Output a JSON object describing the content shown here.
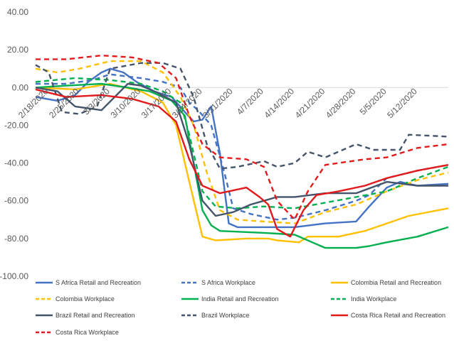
{
  "chart_data": {
    "type": "line",
    "title": "",
    "xlabel": "",
    "ylabel": "",
    "ylim": [
      -100,
      40
    ],
    "yticks": [
      "40.00",
      "20.00",
      "0.00",
      "-20.00",
      "-40.00",
      "-60.00",
      "-80.00",
      "-100.00"
    ],
    "xticks": [
      "2/18/2020",
      "2/25/2020",
      "3/3/2020",
      "3/10/2020",
      "3/17/2020",
      "3/24/2020",
      "3/31/2020",
      "4/7/2020",
      "4/14/2020",
      "4/21/2020",
      "4/28/2020",
      "5/5/2020",
      "5/12/2020"
    ],
    "x_start": "2020-02-15",
    "x_end": "2020-05-19",
    "grid": false,
    "legend_position": "bottom",
    "series": [
      {
        "name": "S Africa Retail and Recreation",
        "color": "#4472C4",
        "dash": "solid",
        "points": [
          [
            "2020-02-15",
            -5
          ],
          [
            "2020-02-20",
            -7
          ],
          [
            "2020-02-24",
            -4
          ],
          [
            "2020-02-27",
            3
          ],
          [
            "2020-03-01",
            8
          ],
          [
            "2020-03-03",
            10
          ],
          [
            "2020-03-06",
            8
          ],
          [
            "2020-03-09",
            3
          ],
          [
            "2020-03-13",
            -2
          ],
          [
            "2020-03-17",
            -5
          ],
          [
            "2020-03-20",
            -13
          ],
          [
            "2020-03-22",
            -18
          ],
          [
            "2020-03-24",
            -17
          ],
          [
            "2020-03-26",
            -10
          ],
          [
            "2020-03-28",
            -35
          ],
          [
            "2020-03-30",
            -72
          ],
          [
            "2020-04-01",
            -74
          ],
          [
            "2020-04-07",
            -74
          ],
          [
            "2020-04-14",
            -74
          ],
          [
            "2020-04-21",
            -72
          ],
          [
            "2020-04-28",
            -71
          ],
          [
            "2020-05-01",
            -63
          ],
          [
            "2020-05-05",
            -53
          ],
          [
            "2020-05-08",
            -50
          ],
          [
            "2020-05-12",
            -52
          ],
          [
            "2020-05-19",
            -51
          ]
        ]
      },
      {
        "name": "S Africa Workplace",
        "color": "#4472C4",
        "dash": "dashed",
        "points": [
          [
            "2020-02-15",
            2
          ],
          [
            "2020-02-22",
            2
          ],
          [
            "2020-02-28",
            4
          ],
          [
            "2020-03-03",
            7
          ],
          [
            "2020-03-10",
            5
          ],
          [
            "2020-03-15",
            3
          ],
          [
            "2020-03-19",
            0
          ],
          [
            "2020-03-21",
            -8
          ],
          [
            "2020-03-23",
            -12
          ],
          [
            "2020-03-26",
            -20
          ],
          [
            "2020-03-29",
            -45
          ],
          [
            "2020-03-31",
            -64
          ],
          [
            "2020-04-04",
            -67
          ],
          [
            "2020-04-10",
            -70
          ],
          [
            "2020-04-14",
            -69
          ],
          [
            "2020-04-21",
            -65
          ],
          [
            "2020-04-28",
            -60
          ],
          [
            "2020-05-01",
            -57
          ],
          [
            "2020-05-05",
            -48
          ],
          [
            "2020-05-12",
            -44
          ],
          [
            "2020-05-19",
            -41
          ]
        ]
      },
      {
        "name": "Colombia Retail and Recreation",
        "color": "#FFC000",
        "dash": "solid",
        "points": [
          [
            "2020-02-15",
            0
          ],
          [
            "2020-02-24",
            -1
          ],
          [
            "2020-03-03",
            2
          ],
          [
            "2020-03-10",
            -2
          ],
          [
            "2020-03-15",
            -8
          ],
          [
            "2020-03-18",
            -20
          ],
          [
            "2020-03-21",
            -50
          ],
          [
            "2020-03-24",
            -79
          ],
          [
            "2020-03-27",
            -81
          ],
          [
            "2020-04-03",
            -80
          ],
          [
            "2020-04-08",
            -80
          ],
          [
            "2020-04-10",
            -81
          ],
          [
            "2020-04-15",
            -82
          ],
          [
            "2020-04-17",
            -79
          ],
          [
            "2020-04-24",
            -79
          ],
          [
            "2020-04-30",
            -76
          ],
          [
            "2020-05-05",
            -72
          ],
          [
            "2020-05-10",
            -68
          ],
          [
            "2020-05-19",
            -64
          ]
        ]
      },
      {
        "name": "Colombia Workplace",
        "color": "#FFC000",
        "dash": "dashed",
        "points": [
          [
            "2020-02-15",
            10
          ],
          [
            "2020-02-20",
            8
          ],
          [
            "2020-02-25",
            10
          ],
          [
            "2020-03-03",
            14
          ],
          [
            "2020-03-10",
            14
          ],
          [
            "2020-03-15",
            8
          ],
          [
            "2020-03-19",
            -5
          ],
          [
            "2020-03-22",
            -20
          ],
          [
            "2020-03-25",
            -45
          ],
          [
            "2020-03-28",
            -65
          ],
          [
            "2020-04-01",
            -70
          ],
          [
            "2020-04-07",
            -71
          ],
          [
            "2020-04-14",
            -72
          ],
          [
            "2020-04-21",
            -66
          ],
          [
            "2020-04-28",
            -62
          ],
          [
            "2020-05-05",
            -55
          ],
          [
            "2020-05-12",
            -49
          ],
          [
            "2020-05-19",
            -45
          ]
        ]
      },
      {
        "name": "India Retail and Recreation",
        "color": "#00B050",
        "dash": "solid",
        "points": [
          [
            "2020-02-15",
            0
          ],
          [
            "2020-02-22",
            1
          ],
          [
            "2020-03-01",
            2
          ],
          [
            "2020-03-07",
            0
          ],
          [
            "2020-03-12",
            -2
          ],
          [
            "2020-03-17",
            -7
          ],
          [
            "2020-03-20",
            -15
          ],
          [
            "2020-03-22",
            -40
          ],
          [
            "2020-03-24",
            -65
          ],
          [
            "2020-03-26",
            -73
          ],
          [
            "2020-03-28",
            -76
          ],
          [
            "2020-04-07",
            -77
          ],
          [
            "2020-04-14",
            -78
          ],
          [
            "2020-04-18",
            -82
          ],
          [
            "2020-04-21",
            -85
          ],
          [
            "2020-04-28",
            -85
          ],
          [
            "2020-05-01",
            -84
          ],
          [
            "2020-05-05",
            -82
          ],
          [
            "2020-05-12",
            -79
          ],
          [
            "2020-05-19",
            -74
          ]
        ]
      },
      {
        "name": "India Workplace",
        "color": "#00B050",
        "dash": "dashed",
        "points": [
          [
            "2020-02-15",
            3
          ],
          [
            "2020-02-24",
            5
          ],
          [
            "2020-03-03",
            4
          ],
          [
            "2020-03-10",
            2
          ],
          [
            "2020-03-15",
            -2
          ],
          [
            "2020-03-19",
            -8
          ],
          [
            "2020-03-21",
            -25
          ],
          [
            "2020-03-24",
            -55
          ],
          [
            "2020-03-27",
            -63
          ],
          [
            "2020-04-01",
            -64
          ],
          [
            "2020-04-07",
            -63
          ],
          [
            "2020-04-14",
            -64
          ],
          [
            "2020-04-21",
            -61
          ],
          [
            "2020-04-28",
            -58
          ],
          [
            "2020-05-05",
            -55
          ],
          [
            "2020-05-12",
            -48
          ],
          [
            "2020-05-19",
            -42
          ]
        ]
      },
      {
        "name": "Brazil Retail and Recreation",
        "color": "#44546A",
        "dash": "solid",
        "points": [
          [
            "2020-02-15",
            0
          ],
          [
            "2020-02-20",
            -2
          ],
          [
            "2020-02-24",
            -10
          ],
          [
            "2020-02-27",
            -11
          ],
          [
            "2020-03-01",
            -12
          ],
          [
            "2020-03-04",
            -5
          ],
          [
            "2020-03-07",
            2
          ],
          [
            "2020-03-10",
            1
          ],
          [
            "2020-03-14",
            -3
          ],
          [
            "2020-03-18",
            -8
          ],
          [
            "2020-03-21",
            -30
          ],
          [
            "2020-03-24",
            -60
          ],
          [
            "2020-03-27",
            -68
          ],
          [
            "2020-03-31",
            -66
          ],
          [
            "2020-04-04",
            -62
          ],
          [
            "2020-04-07",
            -60
          ],
          [
            "2020-04-10",
            -58
          ],
          [
            "2020-04-14",
            -58
          ],
          [
            "2020-04-21",
            -56
          ],
          [
            "2020-04-28",
            -56
          ],
          [
            "2020-05-05",
            -50
          ],
          [
            "2020-05-12",
            -52
          ],
          [
            "2020-05-19",
            -52
          ]
        ]
      },
      {
        "name": "Brazil Workplace",
        "color": "#44546A",
        "dash": "dashed",
        "points": [
          [
            "2020-02-15",
            12
          ],
          [
            "2020-02-18",
            8
          ],
          [
            "2020-02-21",
            -13
          ],
          [
            "2020-02-25",
            -14
          ],
          [
            "2020-02-29",
            -10
          ],
          [
            "2020-03-03",
            10
          ],
          [
            "2020-03-10",
            13
          ],
          [
            "2020-03-15",
            13
          ],
          [
            "2020-03-19",
            10
          ],
          [
            "2020-03-22",
            -5
          ],
          [
            "2020-03-25",
            -30
          ],
          [
            "2020-03-28",
            -43
          ],
          [
            "2020-04-01",
            -42
          ],
          [
            "2020-04-07",
            -39
          ],
          [
            "2020-04-10",
            -42
          ],
          [
            "2020-04-14",
            -40
          ],
          [
            "2020-04-17",
            -34
          ],
          [
            "2020-04-21",
            -37
          ],
          [
            "2020-04-28",
            -30
          ],
          [
            "2020-05-02",
            -33
          ],
          [
            "2020-05-08",
            -33
          ],
          [
            "2020-05-10",
            -25
          ],
          [
            "2020-05-19",
            -26
          ]
        ]
      },
      {
        "name": "Costa Rica Retail and Recreation",
        "color": "#E31A1C",
        "dash": "solid",
        "points": [
          [
            "2020-02-15",
            -1
          ],
          [
            "2020-02-22",
            -5
          ],
          [
            "2020-03-01",
            -4
          ],
          [
            "2020-03-08",
            -6
          ],
          [
            "2020-03-14",
            -10
          ],
          [
            "2020-03-18",
            -18
          ],
          [
            "2020-03-21",
            -38
          ],
          [
            "2020-03-24",
            -52
          ],
          [
            "2020-03-28",
            -56
          ],
          [
            "2020-04-01",
            -54
          ],
          [
            "2020-04-03",
            -53
          ],
          [
            "2020-04-06",
            -58
          ],
          [
            "2020-04-08",
            -62
          ],
          [
            "2020-04-10",
            -75
          ],
          [
            "2020-04-13",
            -79
          ],
          [
            "2020-04-16",
            -65
          ],
          [
            "2020-04-19",
            -57
          ],
          [
            "2020-04-24",
            -55
          ],
          [
            "2020-04-30",
            -52
          ],
          [
            "2020-05-05",
            -48
          ],
          [
            "2020-05-12",
            -44
          ],
          [
            "2020-05-19",
            -41
          ]
        ]
      },
      {
        "name": "Costa Rica Workplace",
        "color": "#E31A1C",
        "dash": "dashed",
        "points": [
          [
            "2020-02-15",
            15
          ],
          [
            "2020-02-22",
            15
          ],
          [
            "2020-03-01",
            17
          ],
          [
            "2020-03-08",
            16
          ],
          [
            "2020-03-14",
            13
          ],
          [
            "2020-03-18",
            5
          ],
          [
            "2020-03-21",
            -15
          ],
          [
            "2020-03-24",
            -30
          ],
          [
            "2020-03-28",
            -37
          ],
          [
            "2020-04-03",
            -38
          ],
          [
            "2020-04-07",
            -42
          ],
          [
            "2020-04-10",
            -60
          ],
          [
            "2020-04-14",
            -70
          ],
          [
            "2020-04-17",
            -55
          ],
          [
            "2020-04-21",
            -41
          ],
          [
            "2020-04-24",
            -40
          ],
          [
            "2020-04-30",
            -38
          ],
          [
            "2020-05-05",
            -37
          ],
          [
            "2020-05-12",
            -32
          ],
          [
            "2020-05-19",
            -30
          ]
        ]
      }
    ]
  }
}
